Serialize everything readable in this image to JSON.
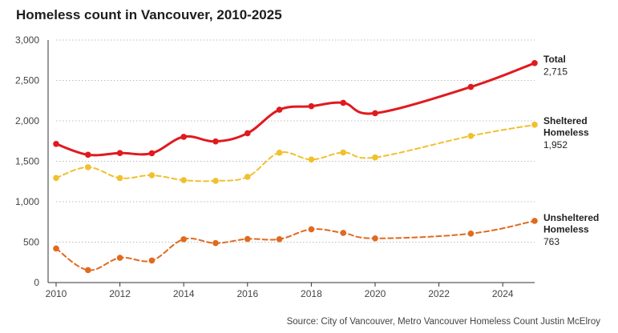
{
  "chart_data": {
    "type": "line",
    "title": "Homeless count in Vancouver, 2010-2025",
    "xlabel": "",
    "ylabel": "",
    "xlim": [
      2010,
      2025
    ],
    "ylim": [
      0,
      3000
    ],
    "x_ticks": [
      2010,
      2012,
      2014,
      2016,
      2018,
      2020,
      2022,
      2024
    ],
    "y_ticks": [
      0,
      500,
      1000,
      1500,
      2000,
      2500,
      3000
    ],
    "y_tick_labels": [
      "0",
      "500",
      "1,000",
      "1,500",
      "2,000",
      "2,500",
      "3,000"
    ],
    "grid": "horizontal dotted",
    "series": [
      {
        "name": "Total",
        "label_lines": [
          "Total"
        ],
        "end_label": "2,715",
        "color": "#e01a1f",
        "style": "solid",
        "x": [
          2010,
          2011,
          2012,
          2013,
          2014,
          2015,
          2016,
          2017,
          2018,
          2019,
          2020,
          2023,
          2025
        ],
        "values": [
          1715,
          1581,
          1602,
          1600,
          1803,
          1746,
          1847,
          2138,
          2181,
          2223,
          2095,
          2420,
          2715
        ]
      },
      {
        "name": "Sheltered Homeless",
        "label_lines": [
          "Sheltered",
          "Homeless"
        ],
        "end_label": "1,952",
        "color": "#f0c02e",
        "style": "dashed",
        "x": [
          2010,
          2011,
          2012,
          2013,
          2014,
          2015,
          2016,
          2017,
          2018,
          2019,
          2020,
          2023,
          2025
        ],
        "values": [
          1294,
          1427,
          1293,
          1327,
          1267,
          1258,
          1308,
          1606,
          1522,
          1609,
          1548,
          1814,
          1952
        ]
      },
      {
        "name": "Unsheltered Homeless",
        "label_lines": [
          "Unsheltered",
          "Homeless"
        ],
        "end_label": "763",
        "color": "#e06a1e",
        "style": "dashed",
        "x": [
          2010,
          2011,
          2012,
          2013,
          2014,
          2015,
          2016,
          2017,
          2018,
          2019,
          2020,
          2023,
          2025
        ],
        "values": [
          421,
          154,
          306,
          273,
          536,
          488,
          539,
          537,
          659,
          614,
          547,
          606,
          763
        ]
      }
    ],
    "source": "Source: City of Vancouver, Metro Vancouver Homeless Count Justin McElroy"
  }
}
